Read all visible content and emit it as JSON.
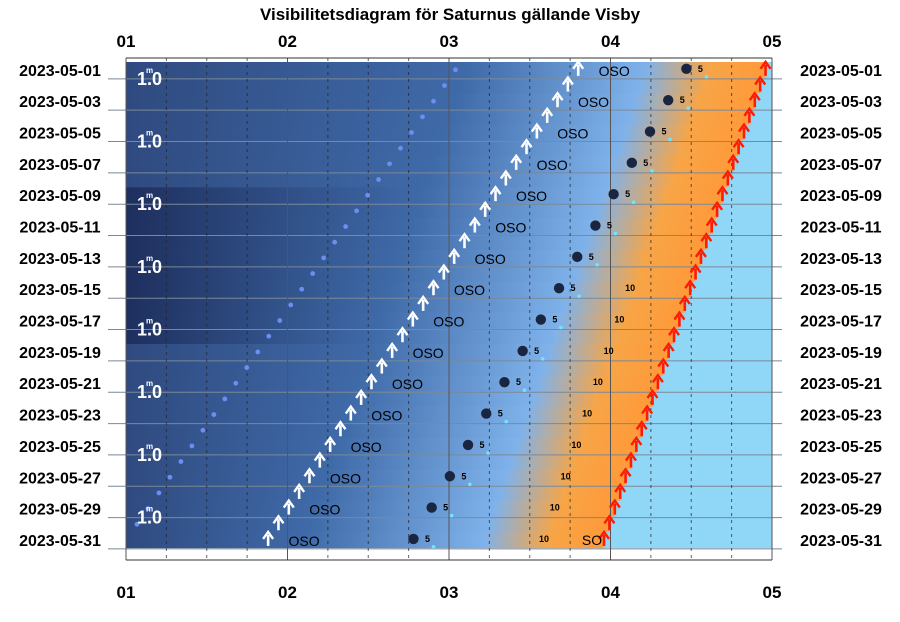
{
  "chart_data": {
    "type": "visibility-diagram",
    "title": "Visibilitetsdiagram för Saturnus gällande Visby",
    "x_ticks": [
      "01",
      "02",
      "03",
      "04",
      "05"
    ],
    "x_range_hours": [
      1,
      5
    ],
    "dates": [
      "2023-05-01",
      "2023-05-03",
      "2023-05-05",
      "2023-05-07",
      "2023-05-09",
      "2023-05-11",
      "2023-05-13",
      "2023-05-15",
      "2023-05-17",
      "2023-05-19",
      "2023-05-21",
      "2023-05-23",
      "2023-05-25",
      "2023-05-27",
      "2023-05-29",
      "2023-05-31"
    ],
    "date_range_days": [
      1,
      31
    ],
    "moon": {
      "label": "1.0",
      "superscript": "m",
      "label_days": [
        1,
        5,
        9,
        13,
        17,
        21,
        25,
        29
      ],
      "track": [
        [
          1,
          3.04
        ],
        [
          31,
          1.0
        ]
      ]
    },
    "saturn_rise": {
      "direction_label": "OSO",
      "start": [
        1,
        3.8
      ],
      "end": [
        31,
        1.88
      ]
    },
    "saturn_positions": {
      "start": [
        1,
        4.47
      ],
      "end": [
        31,
        2.78
      ],
      "altitude_labels_start": [
        "5",
        "5",
        "5",
        "5",
        "5",
        "5",
        "5",
        "5"
      ],
      "altitude_labels_end": [
        "10",
        "10",
        "10"
      ]
    },
    "sunrise": {
      "label": "SO",
      "start": [
        1,
        4.96
      ],
      "end": [
        31,
        3.96
      ]
    },
    "colors": {
      "night": "#1e2f5e",
      "night_mid": "#3f6aa8",
      "twilight_blue": "#7fb2ea",
      "twilight_orange": "#f7a547",
      "day": "#8fd6f7",
      "rise_arrow": "#ffffff",
      "sun_arrow": "#ff1a00",
      "moon_dots": "#6a8ff0",
      "planet": "#1a2540"
    }
  }
}
